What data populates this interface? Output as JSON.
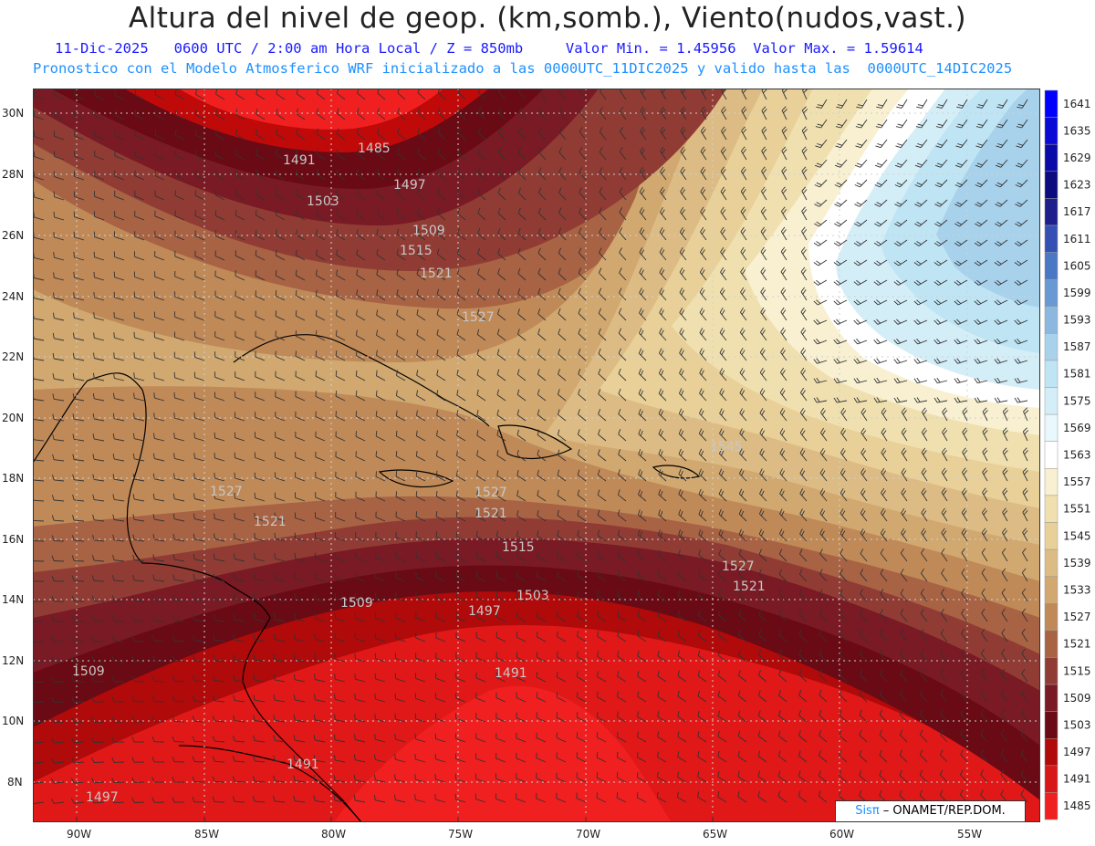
{
  "header": {
    "title": "Altura del nivel de geop. (km,somb.), Viento(nudos,vast.)",
    "line2": "11-Dic-2025   0600 UTC / 2:00 am Hora Local / Z = 850mb     Valor Min. = 1.45956  Valor Max. = 1.59614",
    "line3": "Pronostico con el Modelo Atmosferico WRF inicializado a las 0000UTC_11DIC2025 y valido hasta las  0000UTC_14DIC2025"
  },
  "map": {
    "lat_labels": [
      "30N",
      "28N",
      "26N",
      "24N",
      "22N",
      "20N",
      "18N",
      "16N",
      "14N",
      "12N",
      "10N",
      "8N"
    ],
    "lon_labels": [
      "90W",
      "85W",
      "80W",
      "75W",
      "70W",
      "65W",
      "60W",
      "55W"
    ],
    "contour_labels": [
      "1485",
      "1491",
      "1497",
      "1503",
      "1509",
      "1515",
      "1521",
      "1527",
      "1545",
      "1527",
      "1521",
      "1509",
      "1503",
      "1497",
      "1491",
      "1509",
      "1491",
      "1497",
      "1527",
      "1521",
      "1515",
      "1521",
      "1527"
    ],
    "credit_brand": "Sisπ",
    "credit_text": " – ONAMET/REP.DOM."
  },
  "colorbar": {
    "levels": [
      "1641",
      "1635",
      "1629",
      "1623",
      "1617",
      "1611",
      "1605",
      "1599",
      "1593",
      "1587",
      "1581",
      "1575",
      "1569",
      "1563",
      "1557",
      "1551",
      "1545",
      "1539",
      "1533",
      "1527",
      "1521",
      "1515",
      "1509",
      "1503",
      "1497",
      "1491",
      "1485"
    ],
    "colors": [
      "#0000ff",
      "#0a0ad6",
      "#0a0aa8",
      "#0c0c80",
      "#1e1e8c",
      "#3450b4",
      "#4a78c4",
      "#6a98d2",
      "#8cb8e0",
      "#a8d2ec",
      "#bfe4f4",
      "#d4eef8",
      "#e8f8fc",
      "#ffffff",
      "#f8f0d0",
      "#f0e0b0",
      "#e8d098",
      "#dcbc84",
      "#d0a870",
      "#c08a58",
      "#a86244",
      "#903c34",
      "#7a1a24",
      "#6a0a14",
      "#b00a0a",
      "#d81818",
      "#f02020"
    ]
  }
}
